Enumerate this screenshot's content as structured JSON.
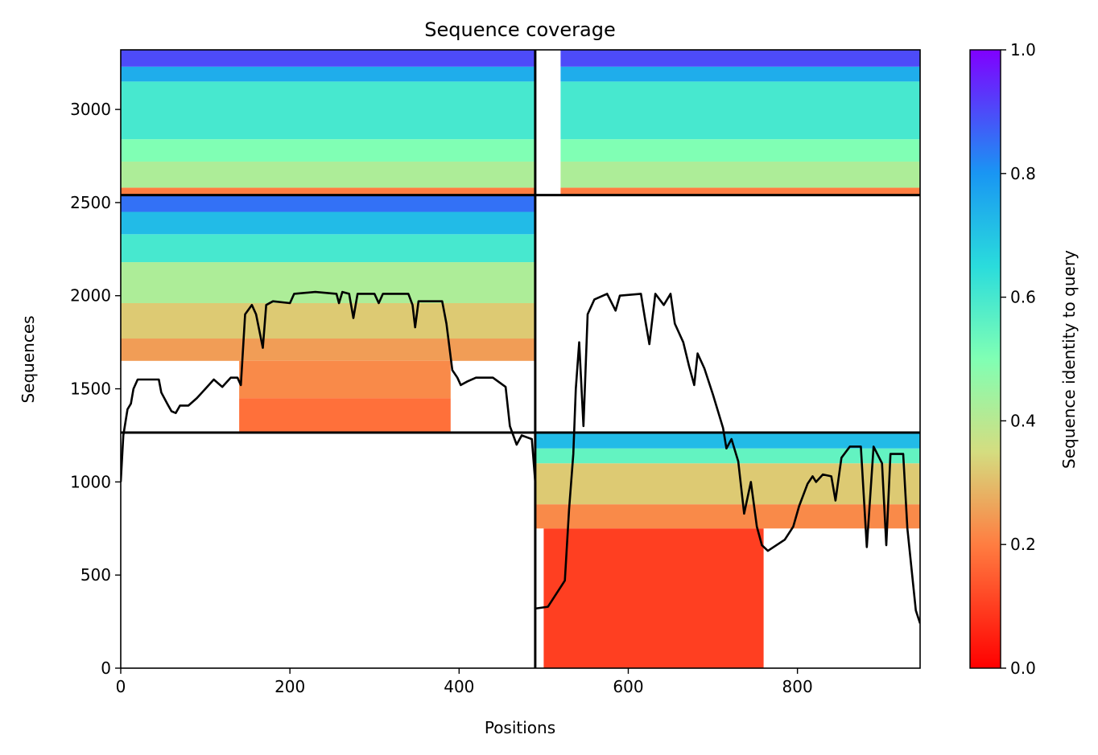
{
  "chart_data": {
    "type": "heatmap",
    "title": "Sequence coverage",
    "xlabel": "Positions",
    "ylabel": "Sequences",
    "xlim": [
      0,
      945
    ],
    "ylim": [
      0,
      3320
    ],
    "xticks": [
      0,
      200,
      400,
      600,
      800
    ],
    "yticks": [
      0,
      500,
      1000,
      1500,
      2000,
      2500,
      3000
    ],
    "colorbar": {
      "label": "Sequence identity to query",
      "range": [
        0.0,
        1.0
      ],
      "ticks": [
        "0.0",
        "0.2",
        "0.4",
        "0.6",
        "0.8",
        "1.0"
      ],
      "colormap": "rainbow_r"
    },
    "block_boundaries": {
      "x": [
        490
      ],
      "y": [
        1265,
        2540
      ]
    },
    "blocks": [
      {
        "x": [
          0,
          490
        ],
        "y": [
          2540,
          3320
        ],
        "identity_bands": [
          [
            2540,
            2580,
            0.2
          ],
          [
            2580,
            2720,
            0.42
          ],
          [
            2720,
            2840,
            0.5
          ],
          [
            2840,
            3150,
            0.6
          ],
          [
            3150,
            3230,
            0.75
          ],
          [
            3230,
            3320,
            0.9
          ]
        ]
      },
      {
        "x": [
          520,
          945
        ],
        "y": [
          2540,
          3320
        ],
        "identity_bands": [
          [
            2540,
            2580,
            0.2
          ],
          [
            2580,
            2720,
            0.42
          ],
          [
            2720,
            2840,
            0.5
          ],
          [
            2840,
            3150,
            0.6
          ],
          [
            3150,
            3230,
            0.75
          ],
          [
            3230,
            3320,
            0.9
          ]
        ]
      },
      {
        "x": [
          0,
          490
        ],
        "y": [
          1650,
          2540
        ],
        "identity_bands": [
          [
            1650,
            1770,
            0.25
          ],
          [
            1770,
            1960,
            0.32
          ],
          [
            1960,
            2180,
            0.42
          ],
          [
            2180,
            2330,
            0.6
          ],
          [
            2330,
            2450,
            0.72
          ],
          [
            2450,
            2540,
            0.85
          ]
        ]
      },
      {
        "x": [
          140,
          390
        ],
        "y": [
          1265,
          1650
        ],
        "identity_bands": [
          [
            1265,
            1450,
            0.18
          ],
          [
            1450,
            1650,
            0.22
          ]
        ]
      },
      {
        "x": [
          490,
          945
        ],
        "y": [
          750,
          1265
        ],
        "identity_bands": [
          [
            750,
            880,
            0.22
          ],
          [
            880,
            1100,
            0.32
          ],
          [
            1100,
            1180,
            0.55
          ],
          [
            1180,
            1265,
            0.72
          ]
        ]
      },
      {
        "x": [
          500,
          760
        ],
        "y": [
          0,
          750
        ],
        "identity_bands": [
          [
            0,
            750,
            0.1
          ]
        ]
      }
    ],
    "coverage_line": [
      [
        0,
        1000
      ],
      [
        3,
        1250
      ],
      [
        8,
        1390
      ],
      [
        12,
        1420
      ],
      [
        15,
        1500
      ],
      [
        20,
        1550
      ],
      [
        45,
        1550
      ],
      [
        48,
        1480
      ],
      [
        55,
        1420
      ],
      [
        60,
        1380
      ],
      [
        65,
        1370
      ],
      [
        70,
        1410
      ],
      [
        80,
        1410
      ],
      [
        90,
        1450
      ],
      [
        100,
        1500
      ],
      [
        110,
        1550
      ],
      [
        120,
        1510
      ],
      [
        130,
        1560
      ],
      [
        138,
        1560
      ],
      [
        142,
        1520
      ],
      [
        147,
        1900
      ],
      [
        155,
        1950
      ],
      [
        160,
        1900
      ],
      [
        168,
        1720
      ],
      [
        172,
        1950
      ],
      [
        180,
        1970
      ],
      [
        200,
        1960
      ],
      [
        205,
        2010
      ],
      [
        230,
        2020
      ],
      [
        255,
        2010
      ],
      [
        258,
        1960
      ],
      [
        262,
        2020
      ],
      [
        270,
        2010
      ],
      [
        275,
        1880
      ],
      [
        280,
        2010
      ],
      [
        300,
        2010
      ],
      [
        305,
        1960
      ],
      [
        310,
        2010
      ],
      [
        340,
        2010
      ],
      [
        345,
        1950
      ],
      [
        348,
        1830
      ],
      [
        352,
        1970
      ],
      [
        380,
        1970
      ],
      [
        385,
        1850
      ],
      [
        392,
        1600
      ],
      [
        398,
        1560
      ],
      [
        402,
        1520
      ],
      [
        410,
        1540
      ],
      [
        420,
        1560
      ],
      [
        440,
        1560
      ],
      [
        455,
        1510
      ],
      [
        460,
        1300
      ],
      [
        468,
        1200
      ],
      [
        474,
        1250
      ],
      [
        480,
        1240
      ],
      [
        486,
        1230
      ],
      [
        490,
        1000
      ],
      [
        490,
        320
      ],
      [
        505,
        330
      ],
      [
        515,
        400
      ],
      [
        525,
        470
      ],
      [
        530,
        850
      ],
      [
        535,
        1150
      ],
      [
        538,
        1500
      ],
      [
        542,
        1750
      ],
      [
        547,
        1300
      ],
      [
        552,
        1900
      ],
      [
        560,
        1980
      ],
      [
        575,
        2010
      ],
      [
        585,
        1920
      ],
      [
        590,
        2000
      ],
      [
        615,
        2010
      ],
      [
        620,
        1870
      ],
      [
        625,
        1740
      ],
      [
        632,
        2010
      ],
      [
        642,
        1950
      ],
      [
        650,
        2010
      ],
      [
        655,
        1850
      ],
      [
        665,
        1750
      ],
      [
        672,
        1620
      ],
      [
        678,
        1520
      ],
      [
        682,
        1690
      ],
      [
        690,
        1610
      ],
      [
        700,
        1470
      ],
      [
        712,
        1290
      ],
      [
        716,
        1180
      ],
      [
        722,
        1230
      ],
      [
        730,
        1110
      ],
      [
        737,
        830
      ],
      [
        745,
        1000
      ],
      [
        752,
        760
      ],
      [
        758,
        660
      ],
      [
        765,
        630
      ],
      [
        785,
        690
      ],
      [
        795,
        760
      ],
      [
        802,
        870
      ],
      [
        812,
        990
      ],
      [
        818,
        1030
      ],
      [
        822,
        1000
      ],
      [
        830,
        1040
      ],
      [
        840,
        1030
      ],
      [
        845,
        900
      ],
      [
        852,
        1130
      ],
      [
        862,
        1190
      ],
      [
        875,
        1190
      ],
      [
        882,
        650
      ],
      [
        890,
        1190
      ],
      [
        900,
        1100
      ],
      [
        905,
        660
      ],
      [
        910,
        1150
      ],
      [
        925,
        1150
      ],
      [
        930,
        750
      ],
      [
        940,
        310
      ],
      [
        945,
        240
      ]
    ]
  }
}
